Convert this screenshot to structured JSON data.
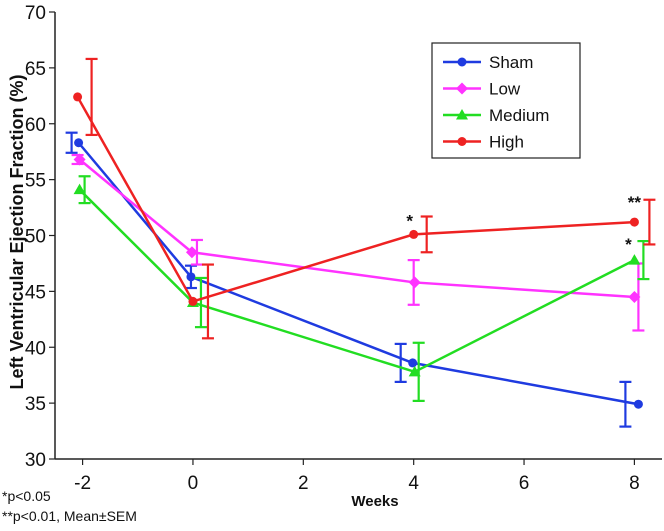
{
  "chart_data": {
    "type": "line",
    "title": "",
    "xlabel": "Weeks",
    "ylabel": "Left Ventricular Ejection Fraction (%)",
    "xlim": [
      -2.5,
      8.5
    ],
    "ylim": [
      30,
      70
    ],
    "xticks": [
      -2,
      0,
      2,
      4,
      6,
      8
    ],
    "yticks": [
      30,
      35,
      40,
      45,
      50,
      55,
      60,
      65,
      70
    ],
    "legend_position": "top-right",
    "series": [
      {
        "name": "Sham",
        "color": "#1f3be0",
        "marker": "circle",
        "x": [
          -2,
          0,
          4,
          8
        ],
        "y": [
          58.3,
          46.3,
          38.6,
          34.9
        ],
        "sem": [
          0.9,
          1.0,
          1.7,
          2.0
        ]
      },
      {
        "name": "Low",
        "color": "#ff33ff",
        "marker": "diamond",
        "x": [
          -2,
          0,
          4,
          8
        ],
        "y": [
          56.8,
          48.5,
          45.8,
          44.5
        ],
        "sem": [
          0.4,
          1.1,
          2.0,
          3.0
        ]
      },
      {
        "name": "Medium",
        "color": "#22dd22",
        "marker": "triangle",
        "x": [
          -2,
          0,
          4,
          8
        ],
        "y": [
          54.1,
          44.0,
          37.8,
          47.8
        ],
        "sem": [
          1.2,
          2.2,
          2.6,
          1.7
        ]
      },
      {
        "name": "High",
        "color": "#ee2222",
        "marker": "circle",
        "x": [
          -2,
          0,
          4,
          8
        ],
        "y": [
          62.4,
          44.1,
          50.1,
          51.2
        ],
        "sem": [
          3.4,
          3.3,
          1.6,
          2.0
        ]
      }
    ],
    "annotations": [
      {
        "text": "*",
        "x": 4,
        "y": 50.1
      },
      {
        "text": "*",
        "x": 8,
        "y": 47.8
      },
      {
        "text": "**",
        "x": 8,
        "y": 51.2
      }
    ],
    "footnotes": [
      "*p<0.05",
      "**p<0.01, Mean±SEM"
    ]
  }
}
